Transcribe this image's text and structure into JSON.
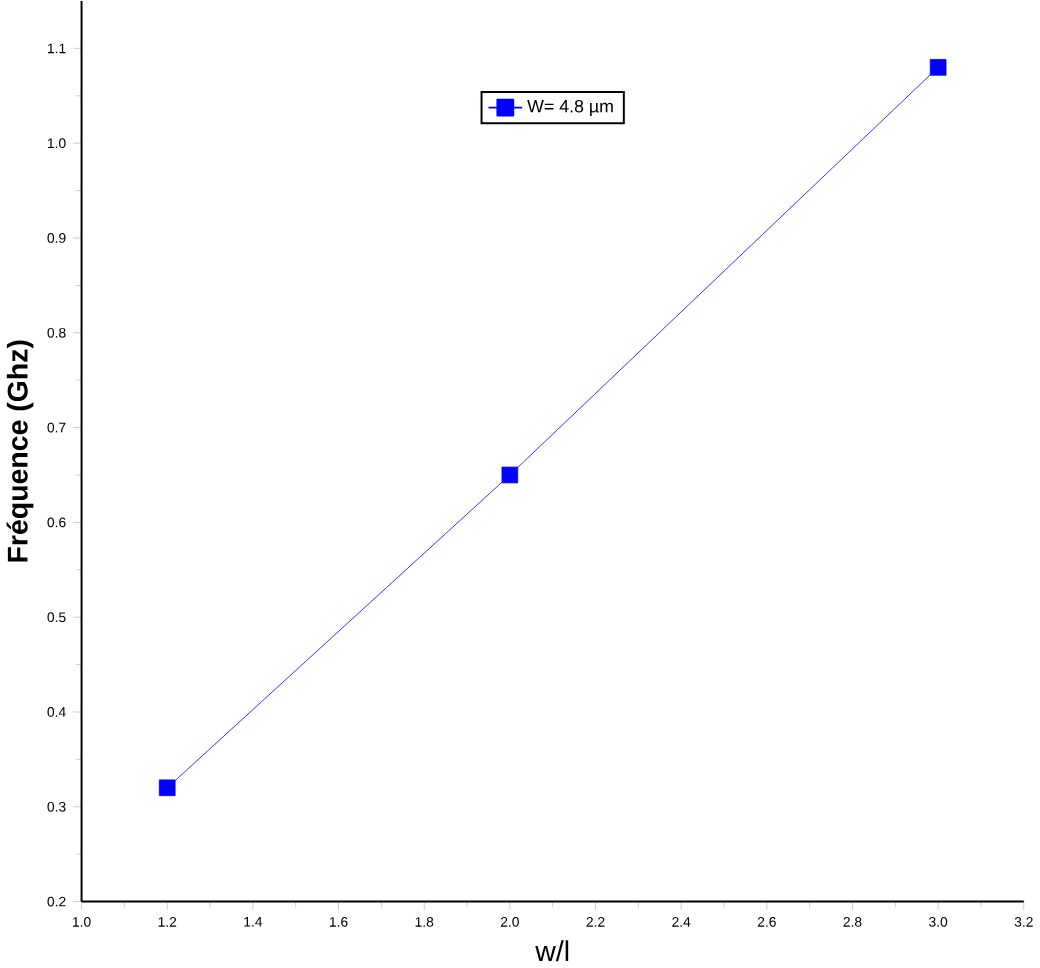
{
  "chart_data": {
    "type": "line",
    "xlabel": "w/l",
    "ylabel": "Fréquence (Ghz)",
    "x": [
      1.2,
      2.0,
      3.0
    ],
    "series": [
      {
        "name": "W= 4.8 µm",
        "color": "#0000ff",
        "values": [
          0.32,
          0.65,
          1.08
        ]
      }
    ],
    "xlim": [
      1.0,
      3.2
    ],
    "ylim": [
      0.2,
      1.15
    ],
    "xticks": [
      {
        "value": 1,
        "label": "1.0"
      },
      1.2,
      1.4,
      1.6,
      1.8,
      {
        "value": 2,
        "label": "2.0"
      },
      2.2,
      2.4,
      2.6,
      2.8,
      {
        "value": 3,
        "label": "3.0"
      },
      3.2
    ],
    "yticks": [
      0.2,
      0.3,
      0.4,
      0.5,
      0.6,
      0.7,
      0.8,
      0.9,
      {
        "value": 1,
        "label": "1.0"
      },
      1.1
    ],
    "marker": "square",
    "line_style": "solid",
    "legend": "top",
    "grid": false
  }
}
